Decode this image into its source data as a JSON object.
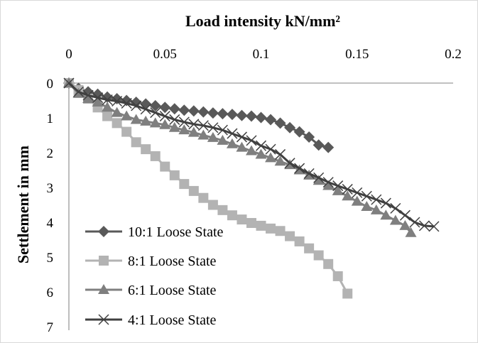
{
  "chart_data": {
    "type": "line",
    "title": "",
    "xlabel": "Load intensity kN/mm²",
    "ylabel": "Settlement in mm",
    "xlim": [
      0,
      0.2
    ],
    "ylim": [
      0,
      7
    ],
    "y_inverted": true,
    "x_axis_position": "top",
    "x_ticks": [
      "0",
      "0.05",
      "0.1",
      "0.15",
      "0.2"
    ],
    "y_ticks": [
      "0",
      "1",
      "2",
      "3",
      "4",
      "5",
      "6",
      "7"
    ],
    "grid": false,
    "legend_position": "bottom-left",
    "series": [
      {
        "name": "10:1 Loose State",
        "marker": "diamond",
        "color": "#595959",
        "points": [
          [
            0.0,
            0.0
          ],
          [
            0.005,
            0.15
          ],
          [
            0.01,
            0.25
          ],
          [
            0.015,
            0.32
          ],
          [
            0.02,
            0.4
          ],
          [
            0.025,
            0.45
          ],
          [
            0.03,
            0.5
          ],
          [
            0.035,
            0.55
          ],
          [
            0.04,
            0.6
          ],
          [
            0.045,
            0.65
          ],
          [
            0.05,
            0.7
          ],
          [
            0.055,
            0.74
          ],
          [
            0.06,
            0.78
          ],
          [
            0.065,
            0.8
          ],
          [
            0.07,
            0.83
          ],
          [
            0.075,
            0.86
          ],
          [
            0.08,
            0.88
          ],
          [
            0.085,
            0.9
          ],
          [
            0.09,
            0.93
          ],
          [
            0.095,
            0.95
          ],
          [
            0.1,
            0.99
          ],
          [
            0.105,
            1.05
          ],
          [
            0.11,
            1.15
          ],
          [
            0.115,
            1.28
          ],
          [
            0.12,
            1.4
          ],
          [
            0.125,
            1.55
          ],
          [
            0.13,
            1.78
          ],
          [
            0.135,
            1.85
          ]
        ]
      },
      {
        "name": "8:1 Loose State",
        "marker": "square",
        "color": "#b3b3b3",
        "points": [
          [
            0.0,
            0.0
          ],
          [
            0.005,
            0.2
          ],
          [
            0.01,
            0.45
          ],
          [
            0.015,
            0.7
          ],
          [
            0.02,
            0.95
          ],
          [
            0.025,
            1.15
          ],
          [
            0.03,
            1.4
          ],
          [
            0.035,
            1.7
          ],
          [
            0.04,
            1.9
          ],
          [
            0.045,
            2.1
          ],
          [
            0.05,
            2.4
          ],
          [
            0.055,
            2.65
          ],
          [
            0.06,
            2.9
          ],
          [
            0.065,
            3.1
          ],
          [
            0.07,
            3.3
          ],
          [
            0.075,
            3.5
          ],
          [
            0.08,
            3.65
          ],
          [
            0.085,
            3.8
          ],
          [
            0.09,
            3.92
          ],
          [
            0.095,
            4.02
          ],
          [
            0.1,
            4.1
          ],
          [
            0.105,
            4.18
          ],
          [
            0.11,
            4.25
          ],
          [
            0.115,
            4.4
          ],
          [
            0.12,
            4.55
          ],
          [
            0.125,
            4.75
          ],
          [
            0.13,
            4.95
          ],
          [
            0.135,
            5.2
          ],
          [
            0.14,
            5.55
          ],
          [
            0.145,
            6.05
          ]
        ]
      },
      {
        "name": "6:1 Loose State",
        "marker": "triangle",
        "color": "#7f7f7f",
        "points": [
          [
            0.0,
            0.0
          ],
          [
            0.005,
            0.3
          ],
          [
            0.01,
            0.45
          ],
          [
            0.015,
            0.55
          ],
          [
            0.02,
            0.7
          ],
          [
            0.025,
            0.85
          ],
          [
            0.03,
            0.95
          ],
          [
            0.035,
            1.05
          ],
          [
            0.04,
            1.1
          ],
          [
            0.045,
            1.15
          ],
          [
            0.05,
            1.2
          ],
          [
            0.055,
            1.28
          ],
          [
            0.06,
            1.35
          ],
          [
            0.065,
            1.42
          ],
          [
            0.07,
            1.5
          ],
          [
            0.075,
            1.57
          ],
          [
            0.08,
            1.65
          ],
          [
            0.085,
            1.75
          ],
          [
            0.09,
            1.85
          ],
          [
            0.095,
            1.95
          ],
          [
            0.1,
            2.05
          ],
          [
            0.105,
            2.15
          ],
          [
            0.11,
            2.25
          ],
          [
            0.115,
            2.35
          ],
          [
            0.12,
            2.5
          ],
          [
            0.125,
            2.65
          ],
          [
            0.13,
            2.8
          ],
          [
            0.135,
            2.95
          ],
          [
            0.14,
            3.1
          ],
          [
            0.145,
            3.25
          ],
          [
            0.15,
            3.4
          ],
          [
            0.155,
            3.55
          ],
          [
            0.16,
            3.65
          ],
          [
            0.165,
            3.8
          ],
          [
            0.17,
            3.95
          ],
          [
            0.175,
            4.1
          ],
          [
            0.178,
            4.3
          ]
        ]
      },
      {
        "name": "4:1 Loose State",
        "marker": "x",
        "color": "#404040",
        "points": [
          [
            0.0,
            0.0
          ],
          [
            0.005,
            0.25
          ],
          [
            0.01,
            0.35
          ],
          [
            0.015,
            0.42
          ],
          [
            0.02,
            0.48
          ],
          [
            0.025,
            0.52
          ],
          [
            0.03,
            0.58
          ],
          [
            0.035,
            0.65
          ],
          [
            0.04,
            0.75
          ],
          [
            0.045,
            0.85
          ],
          [
            0.05,
            0.95
          ],
          [
            0.055,
            1.05
          ],
          [
            0.06,
            1.12
          ],
          [
            0.065,
            1.18
          ],
          [
            0.07,
            1.22
          ],
          [
            0.075,
            1.28
          ],
          [
            0.08,
            1.35
          ],
          [
            0.085,
            1.45
          ],
          [
            0.09,
            1.55
          ],
          [
            0.095,
            1.65
          ],
          [
            0.1,
            1.8
          ],
          [
            0.105,
            1.9
          ],
          [
            0.11,
            2.05
          ],
          [
            0.115,
            2.3
          ],
          [
            0.12,
            2.45
          ],
          [
            0.125,
            2.6
          ],
          [
            0.13,
            2.72
          ],
          [
            0.135,
            2.85
          ],
          [
            0.14,
            2.95
          ],
          [
            0.145,
            3.05
          ],
          [
            0.15,
            3.15
          ],
          [
            0.155,
            3.25
          ],
          [
            0.16,
            3.35
          ],
          [
            0.165,
            3.45
          ],
          [
            0.17,
            3.6
          ],
          [
            0.175,
            3.8
          ],
          [
            0.18,
            4.0
          ],
          [
            0.185,
            4.1
          ],
          [
            0.19,
            4.12
          ]
        ]
      }
    ]
  }
}
